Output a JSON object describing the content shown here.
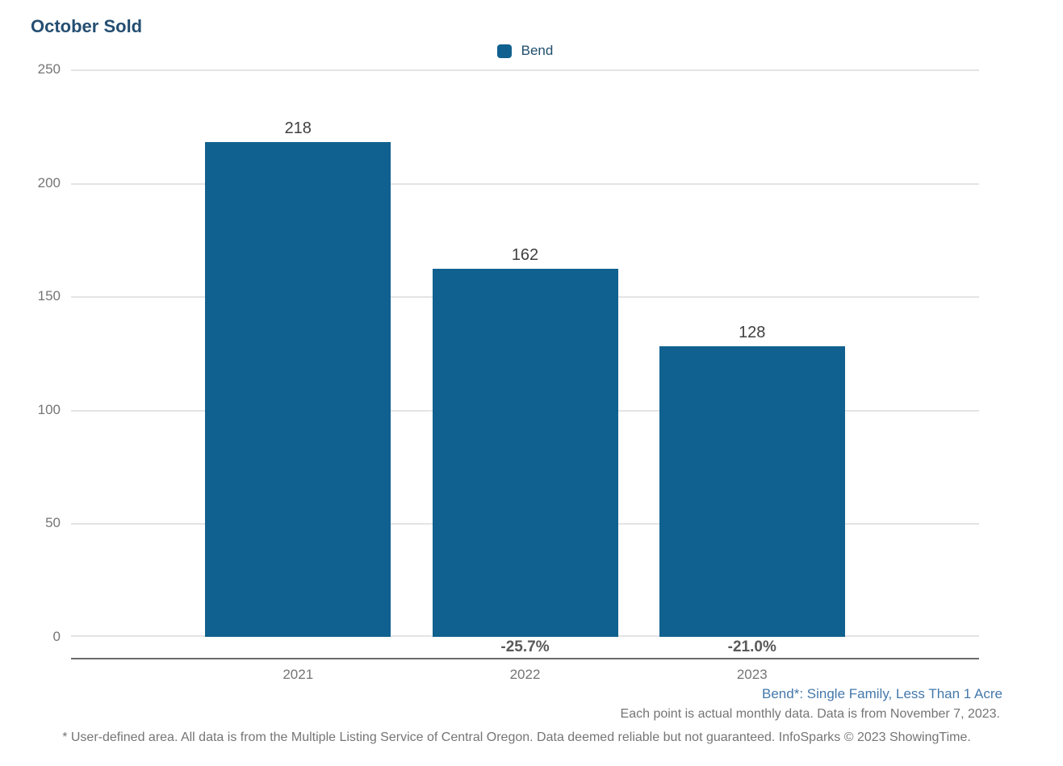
{
  "title": "October Sold",
  "legend": {
    "label": "Bend",
    "swatch_icon": "legend-swatch-square",
    "swatch_color": "#10618f"
  },
  "chart_data": {
    "type": "bar",
    "title": "October Sold",
    "categories": [
      "2021",
      "2022",
      "2023"
    ],
    "series": [
      {
        "name": "Bend",
        "values": [
          218,
          162,
          128
        ]
      }
    ],
    "bar_value_labels": [
      "218",
      "162",
      "128"
    ],
    "pct_change_labels": [
      "",
      "-25.7%",
      "-21.0%"
    ],
    "xlabel": "",
    "ylabel": "",
    "ylim": [
      0,
      250
    ],
    "yticks": [
      0,
      50,
      100,
      150,
      200,
      250
    ],
    "grid": true,
    "legend_position": "top-center",
    "bar_color": "#10618f",
    "colors": {
      "title": "#254e72",
      "axis_line": "#6b6b6b",
      "gridline": "#e4e4e4",
      "tick_label": "#757575",
      "value_label": "#404040",
      "pct_label": "#595959"
    }
  },
  "footnotes": {
    "series_definition": "Bend*: Single Family, Less Than 1 Acre",
    "data_note": "Each point is actual monthly data. Data is from November 7, 2023.",
    "disclaimer": "* User-defined area. All data is from the Multiple Listing Service of Central Oregon. Data deemed reliable but not guaranteed. InfoSparks © 2023 ShowingTime."
  }
}
